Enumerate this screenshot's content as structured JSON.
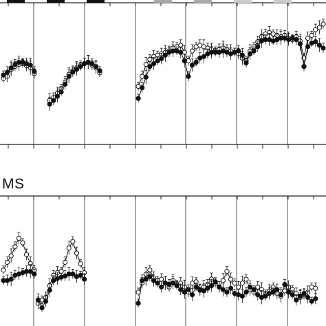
{
  "chart_data": [
    {
      "type": "line",
      "title": "",
      "xlabel": "",
      "ylabel": "",
      "segments": [
        {
          "filled": [
            [
              0,
              98
            ],
            [
              1,
              102
            ],
            [
              2,
              108
            ],
            [
              3,
              113
            ],
            [
              4,
              116
            ],
            [
              5,
              116
            ],
            [
              6,
              114
            ],
            [
              7,
              112
            ],
            [
              8,
              103
            ]
          ],
          "open": [
            [
              0,
              93
            ],
            [
              1,
              96
            ],
            [
              2,
              106
            ],
            [
              3,
              110
            ],
            [
              4,
              113
            ],
            [
              5,
              114
            ],
            [
              6,
              111
            ],
            [
              7,
              108
            ],
            [
              8,
              100
            ]
          ]
        },
        {
          "filled": [
            [
              12,
              57
            ],
            [
              13,
              62
            ],
            [
              14,
              68
            ],
            [
              15,
              74
            ],
            [
              16,
              85
            ],
            [
              17,
              96
            ],
            [
              18,
              102
            ],
            [
              19,
              106
            ],
            [
              20,
              110
            ],
            [
              21,
              114
            ],
            [
              22,
              116
            ],
            [
              23,
              114
            ],
            [
              24,
              110
            ],
            [
              25,
              104
            ]
          ],
          "open": [
            [
              12,
              62
            ],
            [
              13,
              66
            ],
            [
              14,
              72
            ],
            [
              15,
              79
            ],
            [
              16,
              88
            ],
            [
              17,
              99
            ],
            [
              18,
              104
            ],
            [
              19,
              108
            ],
            [
              20,
              112
            ],
            [
              21,
              114
            ],
            [
              22,
              116
            ],
            [
              23,
              112
            ],
            [
              24,
              108
            ],
            [
              25,
              101
            ]
          ]
        },
        {
          "filled": [
            [
              35,
              65
            ],
            [
              36,
              80
            ],
            [
              37,
              95
            ],
            [
              38,
              110
            ],
            [
              39,
              114
            ],
            [
              40,
              118
            ],
            [
              41,
              121
            ],
            [
              42,
              126
            ],
            [
              43,
              130
            ],
            [
              44,
              132
            ],
            [
              45,
              132
            ],
            [
              46,
              130
            ],
            [
              47,
              118
            ],
            [
              48,
              96
            ],
            [
              49,
              112
            ],
            [
              50,
              116
            ],
            [
              51,
              122
            ],
            [
              52,
              124
            ],
            [
              53,
              128
            ],
            [
              54,
              130
            ],
            [
              55,
              130
            ],
            [
              56,
              130
            ],
            [
              57,
              132
            ],
            [
              58,
              130
            ],
            [
              59,
              128
            ],
            [
              60,
              130
            ],
            [
              61,
              132
            ],
            [
              62,
              126
            ],
            [
              63,
              115
            ],
            [
              64,
              128
            ],
            [
              65,
              132
            ],
            [
              66,
              138
            ],
            [
              67,
              146
            ],
            [
              68,
              148
            ],
            [
              69,
              148
            ],
            [
              70,
              146
            ],
            [
              71,
              148
            ],
            [
              72,
              150
            ],
            [
              73,
              150
            ],
            [
              74,
              148
            ],
            [
              75,
              150
            ],
            [
              76,
              148
            ],
            [
              77,
              142
            ],
            [
              78,
              110
            ],
            [
              79,
              138
            ],
            [
              80,
              143
            ],
            [
              81,
              145
            ],
            [
              82,
              140
            ],
            [
              83,
              136
            ]
          ],
          "open": [
            [
              35,
              82
            ],
            [
              36,
              96
            ],
            [
              37,
              113
            ],
            [
              38,
              120
            ],
            [
              39,
              124
            ],
            [
              40,
              126
            ],
            [
              41,
              128
            ],
            [
              42,
              130
            ],
            [
              43,
              132
            ],
            [
              44,
              136
            ],
            [
              45,
              138
            ],
            [
              46,
              140
            ],
            [
              47,
              130
            ],
            [
              48,
              118
            ],
            [
              49,
              132
            ],
            [
              50,
              138
            ],
            [
              51,
              140
            ],
            [
              52,
              138
            ],
            [
              53,
              136
            ],
            [
              54,
              134
            ],
            [
              55,
              132
            ],
            [
              56,
              134
            ],
            [
              57,
              136
            ],
            [
              58,
              134
            ],
            [
              59,
              132
            ],
            [
              60,
              130
            ],
            [
              61,
              128
            ],
            [
              62,
              122
            ],
            [
              63,
              118
            ],
            [
              64,
              132
            ],
            [
              65,
              138
            ],
            [
              66,
              145
            ],
            [
              67,
              152
            ],
            [
              68,
              156
            ],
            [
              69,
              158
            ],
            [
              70,
              156
            ],
            [
              71,
              154
            ],
            [
              72,
              152
            ],
            [
              73,
              154
            ],
            [
              74,
              150
            ],
            [
              75,
              148
            ],
            [
              76,
              152
            ],
            [
              77,
              146
            ],
            [
              78,
              122
            ],
            [
              79,
              150
            ],
            [
              80,
              154
            ],
            [
              81,
              162
            ],
            [
              82,
              165
            ],
            [
              83,
              170
            ]
          ]
        }
      ],
      "separators_x": [
        8.5,
        21.5,
        34.5,
        47.5,
        60.5,
        73.5
      ],
      "header_marks": [
        "#111",
        "#111",
        "#111",
        "#aaa",
        "#aaa",
        "#ccc",
        "#ccc",
        "#111"
      ],
      "ylim": [
        0,
        200
      ],
      "xlim": [
        0,
        83
      ]
    },
    {
      "type": "line",
      "title": "MS",
      "xlabel": "",
      "ylabel": "",
      "segments": [
        {
          "filled": [
            [
              0,
              70
            ],
            [
              1,
              70
            ],
            [
              2,
              72
            ],
            [
              3,
              78
            ],
            [
              4,
              80
            ],
            [
              5,
              82
            ],
            [
              6,
              84
            ],
            [
              7,
              84
            ],
            [
              8,
              80
            ]
          ],
          "open": [
            [
              0,
              86
            ],
            [
              1,
              98
            ],
            [
              2,
              108
            ],
            [
              3,
              122
            ],
            [
              4,
              135
            ],
            [
              5,
              128
            ],
            [
              6,
              110
            ],
            [
              7,
              96
            ],
            [
              8,
              86
            ]
          ]
        },
        {
          "filled": [
            [
              9,
              40
            ],
            [
              10,
              28
            ],
            [
              11,
              38
            ],
            [
              12,
              55
            ],
            [
              13,
              70
            ],
            [
              14,
              73
            ],
            [
              15,
              75
            ],
            [
              16,
              77
            ],
            [
              17,
              80
            ],
            [
              18,
              80
            ],
            [
              19,
              76
            ],
            [
              20,
              78
            ],
            [
              21,
              72
            ]
          ],
          "open": [
            [
              9,
              35
            ],
            [
              10,
              40
            ],
            [
              11,
              44
            ],
            [
              12,
              62
            ],
            [
              13,
              78
            ],
            [
              14,
              82
            ],
            [
              15,
              84
            ],
            [
              16,
              98
            ],
            [
              17,
              120
            ],
            [
              18,
              130
            ],
            [
              19,
              112
            ],
            [
              20,
              96
            ],
            [
              21,
              82
            ]
          ]
        },
        {
          "filled": [
            [
              35,
              35
            ],
            [
              36,
              70
            ],
            [
              37,
              72
            ],
            [
              38,
              76
            ],
            [
              39,
              70
            ],
            [
              40,
              66
            ],
            [
              41,
              60
            ],
            [
              42,
              66
            ],
            [
              43,
              64
            ],
            [
              44,
              66
            ],
            [
              45,
              62
            ],
            [
              46,
              56
            ],
            [
              47,
              52
            ],
            [
              48,
              56
            ],
            [
              49,
              48
            ],
            [
              50,
              60
            ],
            [
              51,
              55
            ],
            [
              52,
              54
            ],
            [
              53,
              58
            ],
            [
              54,
              62
            ],
            [
              55,
              68
            ],
            [
              56,
              60
            ],
            [
              57,
              56
            ],
            [
              58,
              52
            ],
            [
              59,
              58
            ],
            [
              60,
              50
            ],
            [
              61,
              48
            ],
            [
              62,
              46
            ],
            [
              63,
              52
            ],
            [
              64,
              60
            ],
            [
              65,
              56
            ],
            [
              66,
              48
            ],
            [
              67,
              44
            ],
            [
              68,
              46
            ],
            [
              69,
              50
            ],
            [
              70,
              52
            ],
            [
              71,
              56
            ],
            [
              72,
              48
            ],
            [
              73,
              64
            ],
            [
              74,
              52
            ],
            [
              75,
              48
            ],
            [
              76,
              40
            ],
            [
              77,
              46
            ],
            [
              78,
              50
            ],
            [
              79,
              44
            ],
            [
              80,
              38
            ],
            [
              81,
              42
            ]
          ],
          "open": [
            [
              35,
              52
            ],
            [
              36,
              66
            ],
            [
              37,
              80
            ],
            [
              38,
              86
            ],
            [
              39,
              74
            ],
            [
              40,
              70
            ],
            [
              41,
              72
            ],
            [
              42,
              66
            ],
            [
              43,
              60
            ],
            [
              44,
              70
            ],
            [
              45,
              64
            ],
            [
              46,
              66
            ],
            [
              47,
              60
            ],
            [
              48,
              52
            ],
            [
              49,
              66
            ],
            [
              50,
              68
            ],
            [
              51,
              56
            ],
            [
              52,
              60
            ],
            [
              53,
              64
            ],
            [
              54,
              72
            ],
            [
              55,
              66
            ],
            [
              56,
              60
            ],
            [
              57,
              70
            ],
            [
              58,
              84
            ],
            [
              59,
              72
            ],
            [
              60,
              66
            ],
            [
              61,
              60
            ],
            [
              62,
              66
            ],
            [
              63,
              72
            ],
            [
              64,
              56
            ],
            [
              65,
              52
            ],
            [
              66,
              60
            ],
            [
              67,
              56
            ],
            [
              68,
              48
            ],
            [
              69,
              54
            ],
            [
              70,
              60
            ],
            [
              71,
              50
            ],
            [
              72,
              46
            ],
            [
              73,
              54
            ],
            [
              74,
              60
            ],
            [
              75,
              56
            ],
            [
              76,
              50
            ],
            [
              77,
              44
            ],
            [
              78,
              48
            ],
            [
              79,
              52
            ],
            [
              80,
              60
            ],
            [
              81,
              58
            ]
          ]
        }
      ],
      "separators_x": [
        8.5,
        21.5,
        34.5,
        47.5,
        60.5,
        73.5
      ],
      "ylim": [
        0,
        200
      ],
      "xlim": [
        0,
        83
      ]
    }
  ]
}
